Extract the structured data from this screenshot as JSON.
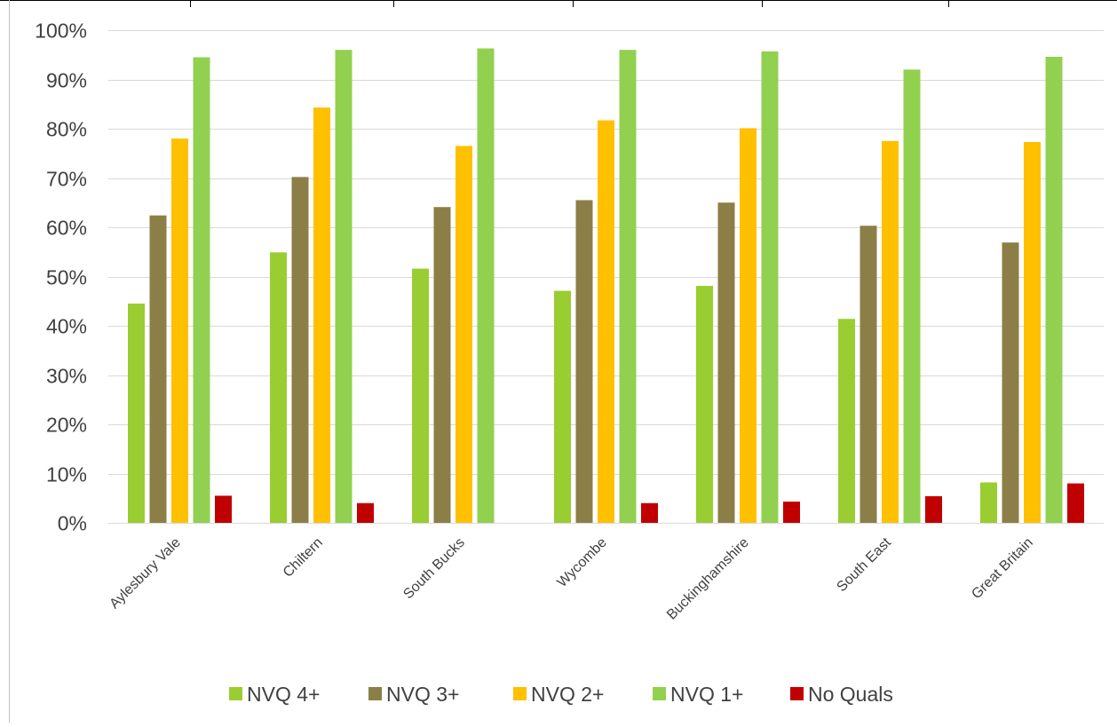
{
  "chart_data": {
    "type": "bar",
    "title": "",
    "xlabel": "",
    "ylabel": "",
    "ylim": [
      0,
      100
    ],
    "y_ticks": [
      "0%",
      "10%",
      "20%",
      "30%",
      "40%",
      "50%",
      "60%",
      "70%",
      "80%",
      "90%",
      "100%"
    ],
    "grid": true,
    "legend_position": "bottom",
    "categories": [
      "Aylesbury Vale",
      "Chiltern",
      "South Bucks",
      "Wycombe",
      "Buckinghamshire",
      "South East",
      "Great Britain"
    ],
    "series": [
      {
        "name": "NVQ 4+",
        "color": "#9ACD32",
        "values": [
          44.5,
          54.9,
          51.6,
          47.1,
          48.1,
          41.4,
          8.2
        ]
      },
      {
        "name": "NVQ 3+",
        "color": "#8B7F47",
        "values": [
          62.4,
          70.2,
          64.1,
          65.5,
          65.0,
          60.3,
          56.9
        ]
      },
      {
        "name": "NVQ 2+",
        "color": "#FFC000",
        "values": [
          78.0,
          84.3,
          76.5,
          81.7,
          80.1,
          77.5,
          77.3
        ]
      },
      {
        "name": "NVQ 1+",
        "color": "#92D050",
        "values": [
          94.5,
          96.0,
          96.3,
          96.0,
          95.7,
          92.0,
          94.6
        ]
      },
      {
        "name": "No Quals",
        "color": "#C00000",
        "values": [
          5.5,
          4.0,
          null,
          4.0,
          4.3,
          5.4,
          8.0
        ]
      }
    ]
  }
}
